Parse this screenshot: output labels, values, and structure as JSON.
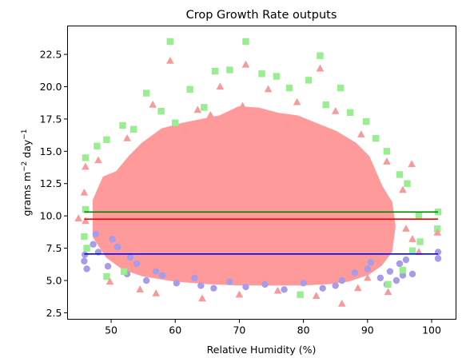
{
  "chart_data": {
    "type": "scatter",
    "title": "Crop Growth Rate outputs",
    "xlabel": "Relative Humidity (%)",
    "ylabel": {
      "base": "grams m",
      "sup1": "−2",
      "mid": " day",
      "sup2": "−1"
    },
    "xlim": [
      43.2,
      103.8
    ],
    "ylim": [
      2.0,
      24.7
    ],
    "x_ticks": [
      50,
      60,
      70,
      80,
      90,
      100
    ],
    "y_ticks": [
      2.5,
      5.0,
      7.5,
      10.0,
      12.5,
      15.0,
      17.5,
      20.0,
      22.5
    ],
    "grid": false,
    "legend": "none",
    "series": [
      {
        "marker": "circle",
        "color": "#a89be8",
        "points": [
          [
            45.8,
            6.5
          ],
          [
            46.2,
            5.9
          ],
          [
            45.9,
            7.0
          ],
          [
            47.2,
            7.8
          ],
          [
            47.6,
            8.6
          ],
          [
            48.0,
            7.2
          ],
          [
            49.5,
            6.1
          ],
          [
            50.2,
            8.2
          ],
          [
            52.5,
            5.5
          ],
          [
            54.0,
            6.3
          ],
          [
            55.5,
            5.0
          ],
          [
            58.0,
            5.4
          ],
          [
            60.2,
            4.8
          ],
          [
            63.0,
            5.2
          ],
          [
            66.0,
            4.4
          ],
          [
            68.5,
            4.9
          ],
          [
            71.0,
            4.5
          ],
          [
            74.0,
            4.7
          ],
          [
            77.0,
            4.3
          ],
          [
            80.0,
            4.8
          ],
          [
            83.0,
            4.4
          ],
          [
            86.0,
            5.0
          ],
          [
            88.0,
            5.6
          ],
          [
            90.0,
            5.9
          ],
          [
            92.0,
            5.2
          ],
          [
            93.5,
            5.7
          ],
          [
            95.0,
            6.3
          ],
          [
            96.0,
            6.6
          ],
          [
            97.0,
            5.5
          ],
          [
            95.5,
            5.4
          ],
          [
            94.5,
            5.0
          ],
          [
            93.0,
            4.7
          ],
          [
            90.5,
            6.4
          ],
          [
            101.0,
            6.7
          ],
          [
            101.0,
            7.2
          ],
          [
            85.0,
            4.6
          ],
          [
            64.0,
            4.6
          ],
          [
            57.0,
            5.7
          ],
          [
            53.0,
            6.8
          ],
          [
            51.0,
            7.6
          ]
        ]
      },
      {
        "marker": "square",
        "color": "#98ee90",
        "points": [
          [
            59.2,
            23.5
          ],
          [
            71.0,
            23.5
          ],
          [
            82.6,
            22.4
          ],
          [
            66.2,
            21.2
          ],
          [
            68.5,
            21.3
          ],
          [
            73.5,
            21.0
          ],
          [
            75.8,
            20.8
          ],
          [
            80.8,
            20.5
          ],
          [
            55.5,
            19.5
          ],
          [
            62.3,
            19.8
          ],
          [
            77.8,
            19.9
          ],
          [
            85.8,
            19.9
          ],
          [
            57.8,
            18.1
          ],
          [
            64.5,
            18.4
          ],
          [
            83.5,
            18.6
          ],
          [
            87.3,
            18.0
          ],
          [
            51.8,
            17.0
          ],
          [
            53.5,
            16.7
          ],
          [
            89.8,
            17.3
          ],
          [
            91.3,
            16.0
          ],
          [
            49.3,
            15.9
          ],
          [
            47.8,
            15.4
          ],
          [
            93.0,
            15.0
          ],
          [
            46.0,
            14.5
          ],
          [
            95.0,
            13.2
          ],
          [
            96.2,
            12.5
          ],
          [
            46.0,
            10.5
          ],
          [
            98.0,
            10.0
          ],
          [
            101.0,
            10.3
          ],
          [
            45.8,
            8.4
          ],
          [
            100.9,
            9.0
          ],
          [
            98.2,
            8.0
          ],
          [
            97.0,
            7.3
          ],
          [
            95.5,
            5.8
          ],
          [
            93.2,
            4.7
          ],
          [
            79.5,
            3.9
          ],
          [
            52.0,
            5.7
          ],
          [
            49.3,
            5.3
          ],
          [
            46.2,
            7.5
          ],
          [
            60.0,
            17.2
          ]
        ]
      },
      {
        "marker": "triangle",
        "color": "#f69a9a",
        "points": [
          [
            59.2,
            22.0
          ],
          [
            71.0,
            21.7
          ],
          [
            82.6,
            21.4
          ],
          [
            67.0,
            20.0
          ],
          [
            74.5,
            19.8
          ],
          [
            56.5,
            18.6
          ],
          [
            63.5,
            18.2
          ],
          [
            79.0,
            18.8
          ],
          [
            85.0,
            18.1
          ],
          [
            52.5,
            16.0
          ],
          [
            89.0,
            16.3
          ],
          [
            48.0,
            14.3
          ],
          [
            46.0,
            13.8
          ],
          [
            93.0,
            14.2
          ],
          [
            95.5,
            12.0
          ],
          [
            45.8,
            11.8
          ],
          [
            46.0,
            9.6
          ],
          [
            96.0,
            9.0
          ],
          [
            100.9,
            8.7
          ],
          [
            49.8,
            4.9
          ],
          [
            54.5,
            4.3
          ],
          [
            57.0,
            4.0
          ],
          [
            64.2,
            3.6
          ],
          [
            70.0,
            3.9
          ],
          [
            76.0,
            4.2
          ],
          [
            82.0,
            3.8
          ],
          [
            86.0,
            3.2
          ],
          [
            88.5,
            4.4
          ],
          [
            93.2,
            4.1
          ],
          [
            90.0,
            5.2
          ],
          [
            97.0,
            8.2
          ],
          [
            98.0,
            7.2
          ],
          [
            51.3,
            13.1
          ],
          [
            61.5,
            16.6
          ],
          [
            87.0,
            15.6
          ],
          [
            77.5,
            17.2
          ],
          [
            65.5,
            17.8
          ],
          [
            70.5,
            18.5
          ],
          [
            44.9,
            9.8
          ],
          [
            96.9,
            14.0
          ]
        ]
      }
    ],
    "lines": [
      {
        "color": "#008000",
        "x": [
          45.8,
          101.0
        ],
        "y": [
          10.3,
          10.3
        ]
      },
      {
        "color": "#ff0000",
        "x": [
          45.8,
          101.0
        ],
        "y": [
          9.75,
          9.75
        ]
      },
      {
        "color": "#0000ff",
        "x": [
          45.8,
          101.0
        ],
        "y": [
          7.05,
          7.05
        ]
      }
    ],
    "cloud_color": "#ff9a9a",
    "cloud_outline": [
      [
        47.5,
        8.4
      ],
      [
        47.5,
        11.2
      ],
      [
        49.0,
        12.9
      ],
      [
        51.0,
        13.3
      ],
      [
        53.0,
        14.5
      ],
      [
        55.0,
        15.5
      ],
      [
        58.0,
        16.6
      ],
      [
        61.0,
        17.0
      ],
      [
        64.0,
        17.3
      ],
      [
        67.0,
        17.6
      ],
      [
        70.0,
        18.3
      ],
      [
        73.0,
        18.2
      ],
      [
        76.0,
        17.8
      ],
      [
        79.0,
        17.6
      ],
      [
        82.0,
        17.0
      ],
      [
        85.0,
        16.4
      ],
      [
        88.0,
        15.5
      ],
      [
        90.0,
        14.5
      ],
      [
        92.0,
        12.2
      ],
      [
        93.5,
        11.0
      ],
      [
        94.0,
        9.2
      ],
      [
        93.5,
        7.3
      ],
      [
        92.0,
        6.3
      ],
      [
        90.0,
        5.6
      ],
      [
        87.0,
        5.1
      ],
      [
        84.0,
        4.9
      ],
      [
        80.0,
        4.8
      ],
      [
        75.0,
        4.8
      ],
      [
        70.0,
        4.8
      ],
      [
        65.0,
        4.9
      ],
      [
        60.0,
        5.1
      ],
      [
        55.0,
        5.5
      ],
      [
        52.0,
        6.0
      ],
      [
        49.5,
        6.9
      ]
    ]
  }
}
